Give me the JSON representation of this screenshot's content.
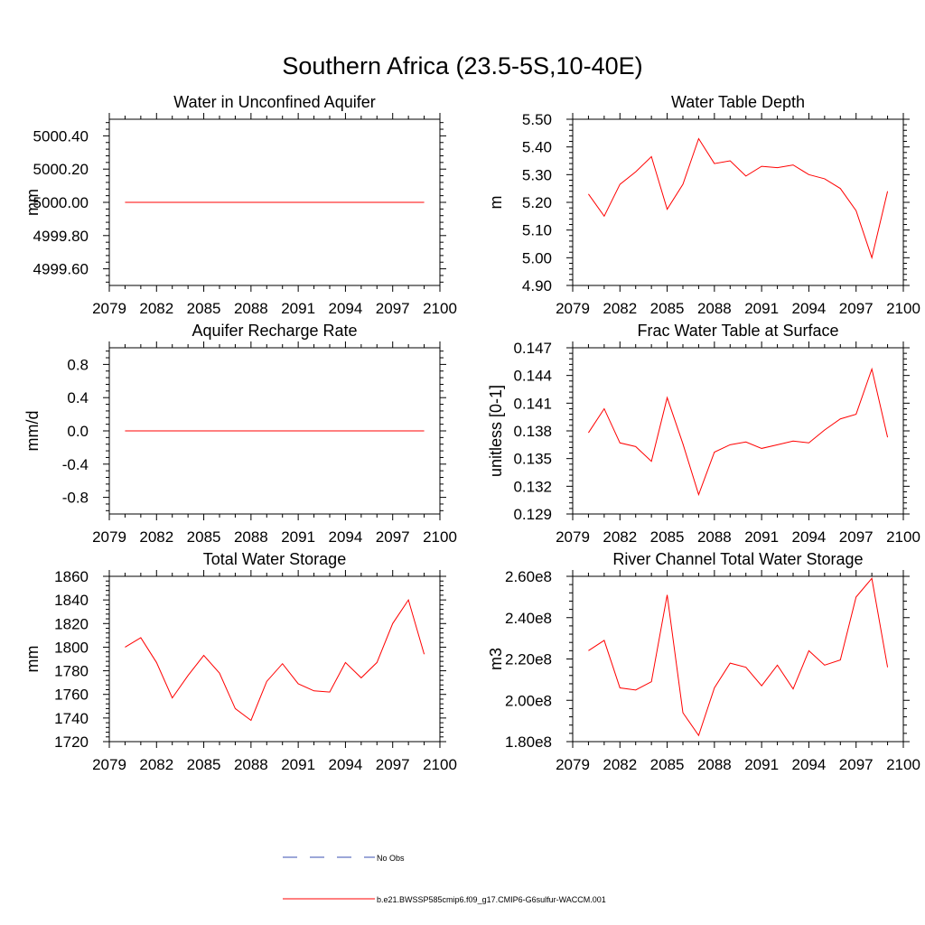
{
  "main_title": "Southern Africa (23.5-5S,10-40E)",
  "colors": {
    "model": "#ff0000",
    "obs": "#3a4fb0",
    "axis": "#000000"
  },
  "legend": {
    "obs_label": "No Obs",
    "model_label": "b.e21.BWSSP585cmip6.f09_g17.CMIP6-G6sulfur-WACCM.001"
  },
  "chart_data": [
    {
      "type": "line",
      "title": "Water in Unconfined Aquifer",
      "ylabel": "mm",
      "xlim": [
        2079,
        2100
      ],
      "ylim": [
        4999.5,
        5000.5
      ],
      "x_ticks": [
        2079,
        2082,
        2085,
        2088,
        2091,
        2094,
        2097,
        2100
      ],
      "x_tick_labels": [
        "2079",
        "2082",
        "2085",
        "2088",
        "2091",
        "2094",
        "2097",
        "2100"
      ],
      "y_ticks": [
        4999.6,
        4999.8,
        5000.0,
        5000.2,
        5000.4
      ],
      "y_tick_labels": [
        "4999.60",
        "4999.80",
        "5000.00",
        "5000.20",
        "5000.40"
      ],
      "series": [
        {
          "name": "b.e21.BWSSP585cmip6.f09_g17.CMIP6-G6sulfur-WACCM.001",
          "x": [
            2080,
            2081,
            2082,
            2083,
            2084,
            2085,
            2086,
            2087,
            2088,
            2089,
            2090,
            2091,
            2092,
            2093,
            2094,
            2095,
            2096,
            2097,
            2098,
            2099
          ],
          "values": [
            5000.0,
            5000.0,
            5000.0,
            5000.0,
            5000.0,
            5000.0,
            5000.0,
            5000.0,
            5000.0,
            5000.0,
            5000.0,
            5000.0,
            5000.0,
            5000.0,
            5000.0,
            5000.0,
            5000.0,
            5000.0,
            5000.0,
            5000.0
          ]
        }
      ]
    },
    {
      "type": "line",
      "title": "Water Table Depth",
      "ylabel": "m",
      "xlim": [
        2079,
        2100
      ],
      "ylim": [
        4.9,
        5.5
      ],
      "x_ticks": [
        2079,
        2082,
        2085,
        2088,
        2091,
        2094,
        2097,
        2100
      ],
      "x_tick_labels": [
        "2079",
        "2082",
        "2085",
        "2088",
        "2091",
        "2094",
        "2097",
        "2100"
      ],
      "y_ticks": [
        4.9,
        5.0,
        5.1,
        5.2,
        5.3,
        5.4,
        5.5
      ],
      "y_tick_labels": [
        "4.90",
        "5.00",
        "5.10",
        "5.20",
        "5.30",
        "5.40",
        "5.50"
      ],
      "series": [
        {
          "name": "b.e21.BWSSP585cmip6.f09_g17.CMIP6-G6sulfur-WACCM.001",
          "x": [
            2080,
            2081,
            2082,
            2083,
            2084,
            2085,
            2086,
            2087,
            2088,
            2089,
            2090,
            2091,
            2092,
            2093,
            2094,
            2095,
            2096,
            2097,
            2098,
            2099
          ],
          "values": [
            5.23,
            5.15,
            5.265,
            5.31,
            5.365,
            5.175,
            5.265,
            5.43,
            5.34,
            5.35,
            5.295,
            5.33,
            5.325,
            5.335,
            5.3,
            5.285,
            5.25,
            5.17,
            5.0,
            5.24
          ]
        }
      ]
    },
    {
      "type": "line",
      "title": "Aquifer Recharge Rate",
      "ylabel": "mm/d",
      "xlim": [
        2079,
        2100
      ],
      "ylim": [
        -1.0,
        1.0
      ],
      "x_ticks": [
        2079,
        2082,
        2085,
        2088,
        2091,
        2094,
        2097,
        2100
      ],
      "x_tick_labels": [
        "2079",
        "2082",
        "2085",
        "2088",
        "2091",
        "2094",
        "2097",
        "2100"
      ],
      "y_ticks": [
        -0.8,
        -0.4,
        0.0,
        0.4,
        0.8
      ],
      "y_tick_labels": [
        "-0.8",
        "-0.4",
        "0.0",
        "0.4",
        "0.8"
      ],
      "series": [
        {
          "name": "b.e21.BWSSP585cmip6.f09_g17.CMIP6-G6sulfur-WACCM.001",
          "x": [
            2080,
            2081,
            2082,
            2083,
            2084,
            2085,
            2086,
            2087,
            2088,
            2089,
            2090,
            2091,
            2092,
            2093,
            2094,
            2095,
            2096,
            2097,
            2098,
            2099
          ],
          "values": [
            0.0,
            0.0,
            0.0,
            0.0,
            0.0,
            0.0,
            0.0,
            0.0,
            0.0,
            0.0,
            0.0,
            0.0,
            0.0,
            0.0,
            0.0,
            0.0,
            0.0,
            0.0,
            0.0,
            0.0
          ]
        }
      ]
    },
    {
      "type": "line",
      "title": "Frac Water Table at Surface",
      "ylabel": "unitless [0-1]",
      "xlim": [
        2079,
        2100
      ],
      "ylim": [
        0.129,
        0.147
      ],
      "x_ticks": [
        2079,
        2082,
        2085,
        2088,
        2091,
        2094,
        2097,
        2100
      ],
      "x_tick_labels": [
        "2079",
        "2082",
        "2085",
        "2088",
        "2091",
        "2094",
        "2097",
        "2100"
      ],
      "y_ticks": [
        0.129,
        0.132,
        0.135,
        0.138,
        0.141,
        0.144,
        0.147
      ],
      "y_tick_labels": [
        "0.129",
        "0.132",
        "0.135",
        "0.138",
        "0.141",
        "0.144",
        "0.147"
      ],
      "series": [
        {
          "name": "b.e21.BWSSP585cmip6.f09_g17.CMIP6-G6sulfur-WACCM.001",
          "x": [
            2080,
            2081,
            2082,
            2083,
            2084,
            2085,
            2086,
            2087,
            2088,
            2089,
            2090,
            2091,
            2092,
            2093,
            2094,
            2095,
            2096,
            2097,
            2098,
            2099
          ],
          "values": [
            0.1378,
            0.1404,
            0.1367,
            0.1363,
            0.1347,
            0.1416,
            0.1366,
            0.1311,
            0.1357,
            0.1365,
            0.1368,
            0.1361,
            0.1365,
            0.1369,
            0.1367,
            0.1381,
            0.1393,
            0.1398,
            0.1447,
            0.1373
          ]
        }
      ]
    },
    {
      "type": "line",
      "title": "Total Water Storage",
      "ylabel": "mm",
      "xlim": [
        2079,
        2100
      ],
      "ylim": [
        1720,
        1860
      ],
      "x_ticks": [
        2079,
        2082,
        2085,
        2088,
        2091,
        2094,
        2097,
        2100
      ],
      "x_tick_labels": [
        "2079",
        "2082",
        "2085",
        "2088",
        "2091",
        "2094",
        "2097",
        "2100"
      ],
      "y_ticks": [
        1720,
        1740,
        1760,
        1780,
        1800,
        1820,
        1840,
        1860
      ],
      "y_tick_labels": [
        "1720",
        "1740",
        "1760",
        "1780",
        "1800",
        "1820",
        "1840",
        "1860"
      ],
      "series": [
        {
          "name": "b.e21.BWSSP585cmip6.f09_g17.CMIP6-G6sulfur-WACCM.001",
          "x": [
            2080,
            2081,
            2082,
            2083,
            2084,
            2085,
            2086,
            2087,
            2088,
            2089,
            2090,
            2091,
            2092,
            2093,
            2094,
            2095,
            2096,
            2097,
            2098,
            2099
          ],
          "values": [
            1800,
            1808,
            1787,
            1757,
            1776,
            1793,
            1778,
            1748,
            1738,
            1771,
            1786,
            1769,
            1763,
            1762,
            1787,
            1774,
            1787,
            1820,
            1840,
            1794
          ]
        }
      ]
    },
    {
      "type": "line",
      "title": "River Channel Total Water Storage",
      "ylabel": "m3",
      "xlim": [
        2079,
        2100
      ],
      "ylim": [
        180000000,
        260000000
      ],
      "x_ticks": [
        2079,
        2082,
        2085,
        2088,
        2091,
        2094,
        2097,
        2100
      ],
      "x_tick_labels": [
        "2079",
        "2082",
        "2085",
        "2088",
        "2091",
        "2094",
        "2097",
        "2100"
      ],
      "y_ticks": [
        180000000,
        200000000,
        220000000,
        240000000,
        260000000
      ],
      "y_tick_labels": [
        "1.80e8",
        "2.00e8",
        "2.20e8",
        "2.40e8",
        "2.60e8"
      ],
      "series": [
        {
          "name": "b.e21.BWSSP585cmip6.f09_g17.CMIP6-G6sulfur-WACCM.001",
          "x": [
            2080,
            2081,
            2082,
            2083,
            2084,
            2085,
            2086,
            2087,
            2088,
            2089,
            2090,
            2091,
            2092,
            2093,
            2094,
            2095,
            2096,
            2097,
            2098,
            2099
          ],
          "values": [
            224000000,
            229000000,
            206000000,
            205000000,
            209000000,
            251000000,
            194000000,
            183000000,
            206000000,
            218000000,
            216000000,
            207000000,
            217000000,
            205500000,
            224000000,
            217000000,
            219500000,
            250000000,
            259000000,
            216000000
          ]
        }
      ]
    }
  ]
}
